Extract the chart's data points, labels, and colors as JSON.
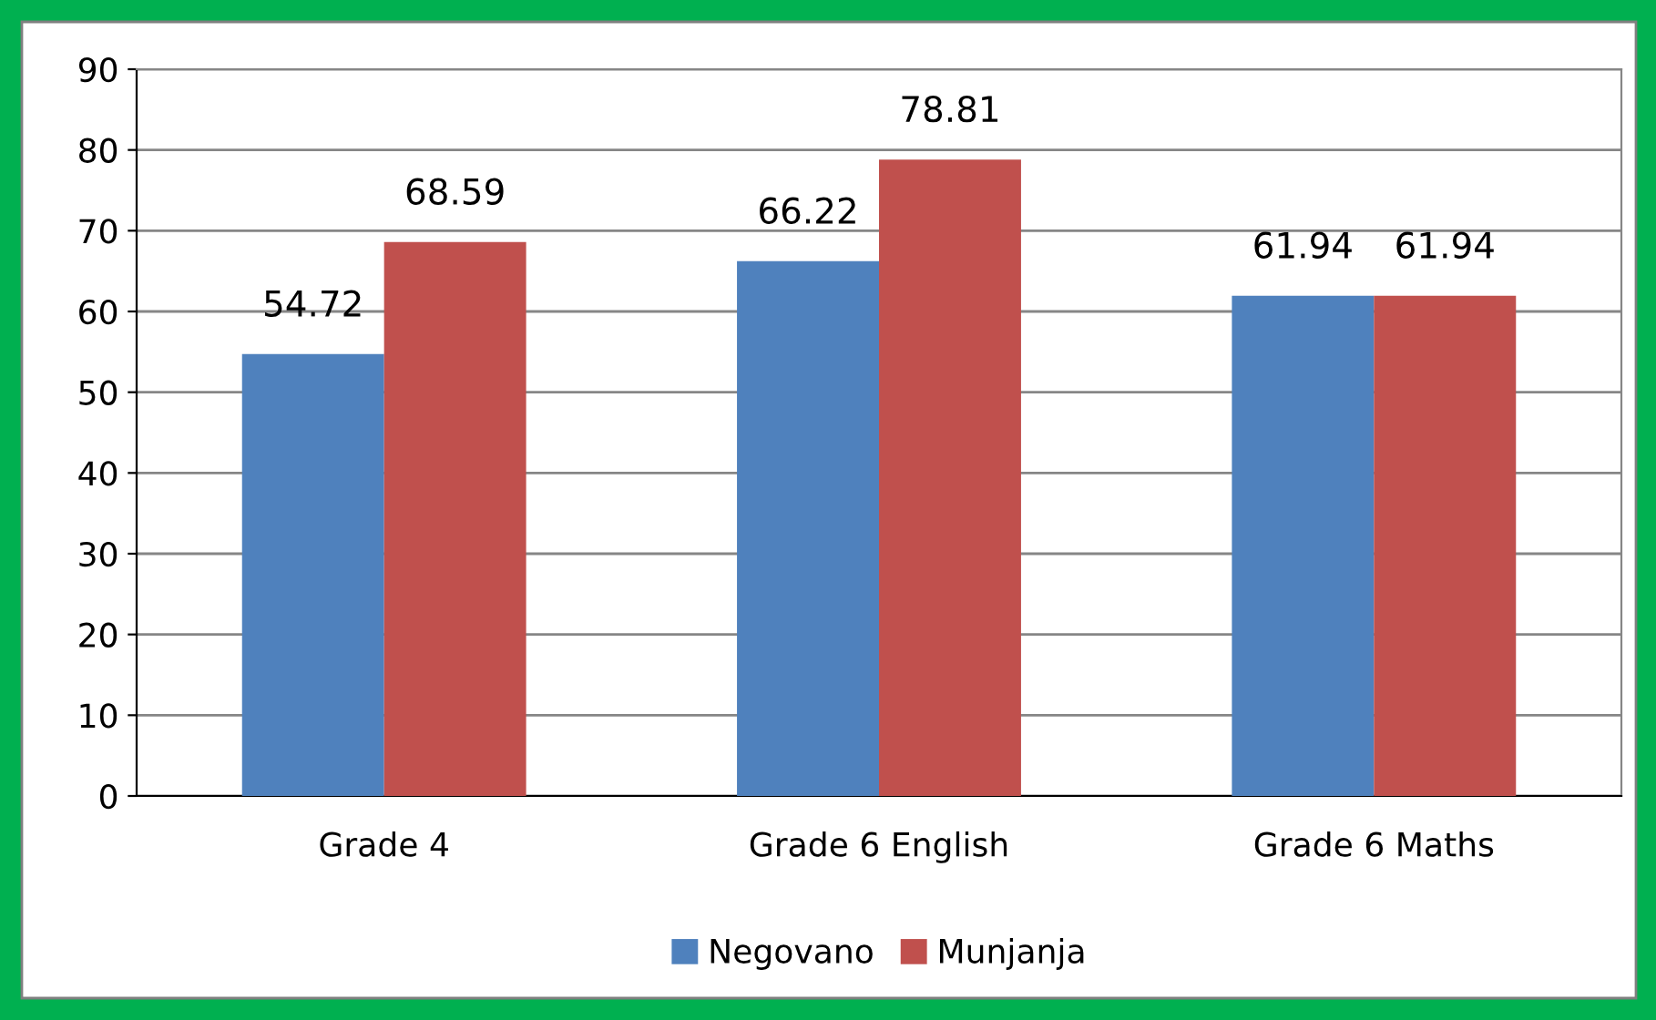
{
  "chart_data": {
    "type": "bar",
    "categories": [
      "Grade 4",
      "Grade 6 English",
      "Grade 6 Maths"
    ],
    "series": [
      {
        "name": "Negovano",
        "color": "#4f81bd",
        "values": [
          54.72,
          66.22,
          61.94
        ]
      },
      {
        "name": "Munjanja",
        "color": "#c0504d",
        "values": [
          68.59,
          78.81,
          61.94
        ]
      }
    ],
    "ylim": [
      0,
      90
    ],
    "yticks": [
      0,
      10,
      20,
      30,
      40,
      50,
      60,
      70,
      80,
      90
    ],
    "grid": "y",
    "legend": "bottom",
    "data_labels": true
  }
}
